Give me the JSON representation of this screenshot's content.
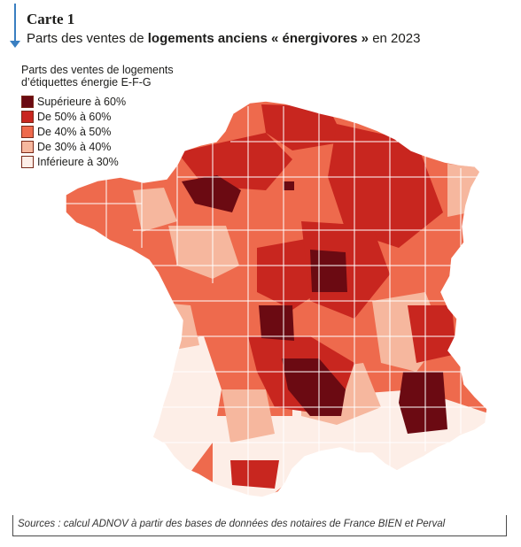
{
  "header": {
    "label": "Carte 1",
    "subtitle_prefix": "Parts des ventes de ",
    "subtitle_bold": "logements anciens « énergivores »",
    "subtitle_suffix": " en 2023"
  },
  "legend": {
    "title": "Parts des ventes de logements d’étiquettes énergie E-F-G",
    "items": [
      {
        "label": "Supérieure à 60%",
        "color": "#6b0a12"
      },
      {
        "label": "De 50% à 60%",
        "color": "#c8261f"
      },
      {
        "label": "De 40% à 50%",
        "color": "#ee6a4d"
      },
      {
        "label": "De 30% à 40%",
        "color": "#f6b79e"
      },
      {
        "label": "Inférieure à 30%",
        "color": "#fdeee7"
      }
    ]
  },
  "sources": "Sources : calcul ADNOV à partir des bases de données des notaires de France BIEN et Perval"
}
